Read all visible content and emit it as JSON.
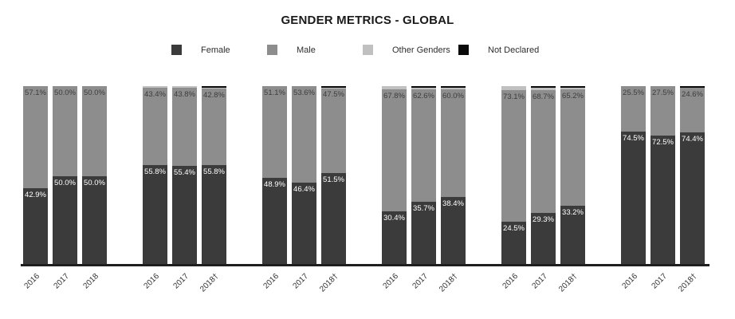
{
  "title": "GENDER METRICS - GLOBAL",
  "legend": {
    "items": [
      {
        "label": "Female",
        "key": "female"
      },
      {
        "label": "Male",
        "key": "male"
      },
      {
        "label": "Other Genders",
        "key": "other_genders"
      },
      {
        "label": "Not Declared",
        "key": "not_declared"
      }
    ]
  },
  "colors": {
    "female": "#3b3b3b",
    "male": "#8d8d8d",
    "other_genders": "#c0c0c0",
    "not_declared": "#0a0a0a",
    "axis": "#1f1f1f",
    "female_label_text": "#ffffff",
    "male_label_text": "#3d3d3d"
  },
  "chart_data": {
    "type": "bar",
    "stacked": true,
    "value_unit": "%",
    "ylim": [
      0,
      100
    ],
    "legend_position": "top",
    "grid": false,
    "series_order": [
      "female",
      "male",
      "other_genders",
      "not_declared"
    ],
    "labeled_series": [
      "female",
      "male"
    ],
    "x_tick_rotation": 45,
    "groups": [
      {
        "bars": [
          {
            "year": "2016",
            "female": 42.9,
            "male": 57.1,
            "other_genders": 0,
            "not_declared": 0
          },
          {
            "year": "2017",
            "female": 50.0,
            "male": 50.0,
            "other_genders": 0,
            "not_declared": 0
          },
          {
            "year": "2018",
            "female": 50.0,
            "male": 50.0,
            "other_genders": 0,
            "not_declared": 0
          }
        ]
      },
      {
        "bars": [
          {
            "year": "2016",
            "female": 55.8,
            "male": 43.4,
            "other_genders": 0.8,
            "not_declared": 0
          },
          {
            "year": "2017",
            "female": 55.4,
            "male": 43.8,
            "other_genders": 0.8,
            "not_declared": 0
          },
          {
            "year": "2018†",
            "female": 55.8,
            "male": 42.8,
            "other_genders": 0.7,
            "not_declared": 0.7
          }
        ]
      },
      {
        "bars": [
          {
            "year": "2016",
            "female": 48.9,
            "male": 51.1,
            "other_genders": 0,
            "not_declared": 0
          },
          {
            "year": "2017",
            "female": 46.4,
            "male": 53.6,
            "other_genders": 0,
            "not_declared": 0
          },
          {
            "year": "2018†",
            "female": 51.5,
            "male": 47.5,
            "other_genders": 0.3,
            "not_declared": 0.7
          }
        ]
      },
      {
        "bars": [
          {
            "year": "2016",
            "female": 30.4,
            "male": 67.8,
            "other_genders": 1.8,
            "not_declared": 0
          },
          {
            "year": "2017",
            "female": 35.7,
            "male": 62.6,
            "other_genders": 0.8,
            "not_declared": 0.9
          },
          {
            "year": "2018†",
            "female": 38.4,
            "male": 60.0,
            "other_genders": 0.7,
            "not_declared": 0.9
          }
        ]
      },
      {
        "bars": [
          {
            "year": "2016",
            "female": 24.5,
            "male": 73.1,
            "other_genders": 2.4,
            "not_declared": 0
          },
          {
            "year": "2017",
            "female": 29.3,
            "male": 68.7,
            "other_genders": 1.0,
            "not_declared": 1.0
          },
          {
            "year": "2018†",
            "female": 33.2,
            "male": 65.2,
            "other_genders": 0.7,
            "not_declared": 0.9
          }
        ]
      },
      {
        "bars": [
          {
            "year": "2016",
            "female": 74.5,
            "male": 25.5,
            "other_genders": 0,
            "not_declared": 0
          },
          {
            "year": "2017",
            "female": 72.5,
            "male": 27.5,
            "other_genders": 0,
            "not_declared": 0
          },
          {
            "year": "2018†",
            "female": 74.4,
            "male": 24.6,
            "other_genders": 0,
            "not_declared": 1.0
          }
        ]
      }
    ]
  }
}
